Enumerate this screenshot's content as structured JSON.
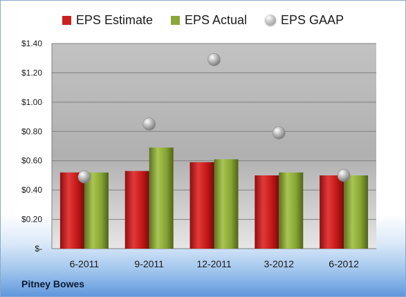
{
  "colors": {
    "eps_estimate": "#cc1f1f",
    "eps_actual": "#8aa83a",
    "eps_gaap": "#b5b5b5",
    "plot_background": "#b9b9b9"
  },
  "legend": {
    "items": [
      {
        "label": "EPS Estimate",
        "icon": "red-square-icon"
      },
      {
        "label": "EPS Actual",
        "icon": "green-square-icon"
      },
      {
        "label": "EPS GAAP",
        "icon": "gray-sphere-icon"
      }
    ]
  },
  "brand": "Pitney Bowes",
  "chart_data": {
    "type": "bar",
    "categories": [
      "6-2011",
      "9-2011",
      "12-2011",
      "3-2012",
      "6-2012"
    ],
    "series": [
      {
        "name": "EPS Estimate",
        "type": "bar",
        "values": [
          0.52,
          0.53,
          0.59,
          0.5,
          0.5
        ]
      },
      {
        "name": "EPS Actual",
        "type": "bar",
        "values": [
          0.52,
          0.69,
          0.61,
          0.52,
          0.5
        ]
      },
      {
        "name": "EPS GAAP",
        "type": "scatter",
        "values": [
          0.49,
          0.85,
          1.29,
          0.79,
          0.5
        ]
      }
    ],
    "ylim": [
      0,
      1.4
    ],
    "yticks": [
      0,
      0.2,
      0.4,
      0.6,
      0.8,
      1.0,
      1.2,
      1.4
    ],
    "ytick_labels": [
      "$-",
      "$0.20",
      "$0.40",
      "$0.60",
      "$0.80",
      "$1.00",
      "$1.20",
      "$1.40"
    ],
    "grid": true,
    "legend_position": "top"
  }
}
